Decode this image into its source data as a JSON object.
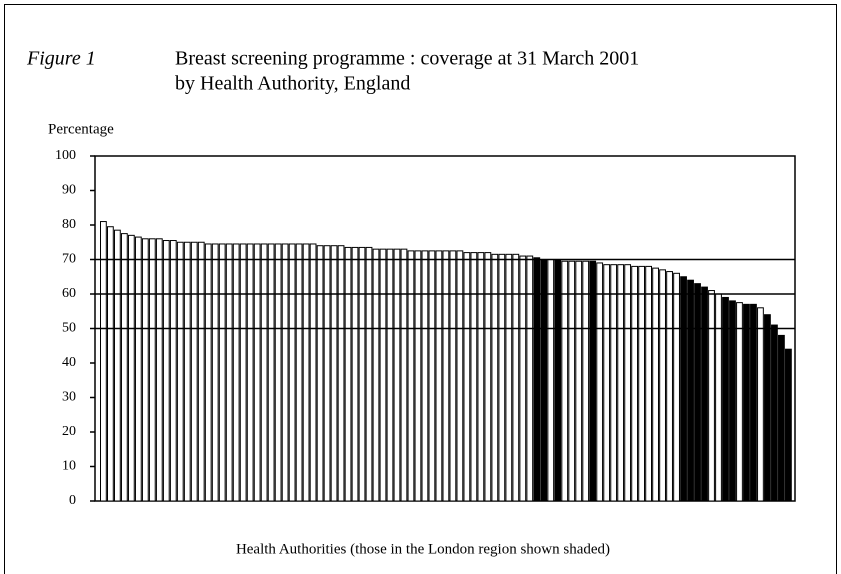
{
  "chart_data": {
    "type": "bar",
    "figure_label": "Figure 1",
    "title": [
      "Breast screening programme : coverage at 31 March 2001",
      "by Health Authority, England"
    ],
    "y_label": "Percentage",
    "x_label": "Health Authorities (those in the London region shown shaded)",
    "values": [
      81,
      79.5,
      78.5,
      77.5,
      77,
      76.5,
      76,
      76,
      76,
      75.5,
      75.5,
      75,
      75,
      75,
      75,
      74.5,
      74.5,
      74.5,
      74.5,
      74.5,
      74.5,
      74.5,
      74.5,
      74.5,
      74.5,
      74.5,
      74.5,
      74.5,
      74.5,
      74.5,
      74.5,
      74,
      74,
      74,
      74,
      73.5,
      73.5,
      73.5,
      73.5,
      73,
      73,
      73,
      73,
      73,
      72.5,
      72.5,
      72.5,
      72.5,
      72.5,
      72.5,
      72.5,
      72.5,
      72,
      72,
      72,
      72,
      71.5,
      71.5,
      71.5,
      71.5,
      71,
      71,
      70.5,
      70,
      70,
      70,
      69.5,
      69.5,
      69.5,
      69.5,
      69.5,
      69,
      68.5,
      68.5,
      68.5,
      68.5,
      68,
      68,
      68,
      67.5,
      67,
      66.5,
      66,
      65,
      64,
      63,
      62,
      61,
      60,
      59,
      58,
      57.5,
      57,
      57,
      56,
      54,
      51,
      48,
      44
    ],
    "colors": [
      "#fff",
      "#fff",
      "#fff",
      "#fff",
      "#fff",
      "#fff",
      "#fff",
      "#fff",
      "#fff",
      "#fff",
      "#fff",
      "#fff",
      "#fff",
      "#fff",
      "#fff",
      "#fff",
      "#fff",
      "#fff",
      "#fff",
      "#fff",
      "#fff",
      "#fff",
      "#fff",
      "#fff",
      "#fff",
      "#fff",
      "#fff",
      "#fff",
      "#fff",
      "#fff",
      "#fff",
      "#fff",
      "#fff",
      "#fff",
      "#fff",
      "#fff",
      "#fff",
      "#fff",
      "#fff",
      "#fff",
      "#fff",
      "#fff",
      "#fff",
      "#fff",
      "#fff",
      "#fff",
      "#fff",
      "#fff",
      "#fff",
      "#fff",
      "#fff",
      "#fff",
      "#fff",
      "#fff",
      "#fff",
      "#fff",
      "#fff",
      "#fff",
      "#fff",
      "#fff",
      "#fff",
      "#fff",
      "#000",
      "#000",
      "#fff",
      "#000",
      "#fff",
      "#fff",
      "#fff",
      "#fff",
      "#000",
      "#fff",
      "#fff",
      "#fff",
      "#fff",
      "#fff",
      "#fff",
      "#fff",
      "#fff",
      "#fff",
      "#fff",
      "#fff",
      "#fff",
      "#000",
      "#000",
      "#000",
      "#000",
      "#fff",
      "#fff",
      "#000",
      "#000",
      "#fff",
      "#000",
      "#000",
      "#fff",
      "#000",
      "#000",
      "#000",
      "#000"
    ],
    "ylim": [
      0,
      100
    ],
    "yticks": [
      0,
      10,
      20,
      30,
      40,
      50,
      60,
      70,
      80,
      90,
      100
    ],
    "reference_lines": [
      50,
      60,
      70
    ]
  }
}
